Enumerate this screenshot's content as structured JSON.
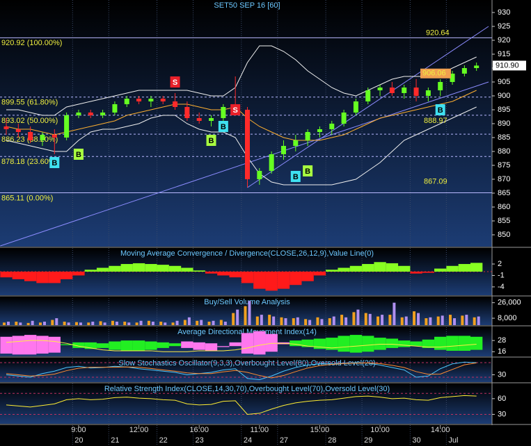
{
  "chart_data": [
    {
      "type": "candlestick",
      "title": "SET50 SEP 16  [60]",
      "categories": [
        null,
        null,
        null,
        null,
        null,
        null,
        "9:00",
        null,
        null,
        null,
        null,
        "12:00",
        null,
        null,
        null,
        null,
        "16:00",
        null,
        null,
        null,
        null,
        "11:00",
        null,
        null,
        null,
        null,
        "15:00",
        null,
        null,
        null,
        null,
        "10:00",
        null,
        null,
        null,
        null,
        "14:00",
        null,
        null,
        null
      ],
      "dates": [
        null,
        null,
        null,
        null,
        null,
        null,
        "20",
        null,
        null,
        "21",
        null,
        null,
        null,
        "22",
        null,
        null,
        "23",
        null,
        null,
        null,
        "24",
        null,
        null,
        "27",
        null,
        null,
        null,
        "28",
        null,
        null,
        "29",
        null,
        null,
        null,
        "30",
        null,
        null,
        "Jul",
        null,
        null
      ],
      "open": [
        889,
        888,
        887,
        884,
        886,
        885,
        893,
        894,
        893,
        894,
        897,
        899,
        898,
        899,
        898,
        896,
        892,
        891,
        892,
        896,
        895,
        870,
        873,
        879,
        882,
        884,
        887,
        888,
        890,
        894,
        898,
        902,
        903,
        901,
        903,
        900,
        902,
        905,
        908,
        910
      ],
      "high": [
        892,
        890,
        889,
        887,
        888,
        894,
        895,
        895,
        895,
        898,
        900,
        900,
        900,
        900,
        901,
        898,
        894,
        893,
        897,
        907,
        896,
        874,
        880,
        884,
        886,
        888,
        889,
        891,
        895,
        899,
        903,
        904,
        905,
        904,
        906.06,
        903,
        906,
        909,
        911,
        912
      ],
      "low": [
        886,
        885,
        883,
        882,
        879,
        884,
        892,
        892,
        892,
        893,
        896,
        897,
        896,
        897,
        895,
        891,
        890,
        889,
        891,
        894,
        867.09,
        868,
        872,
        877,
        880,
        882,
        885,
        886,
        889,
        893,
        897,
        900,
        900,
        899,
        898,
        898,
        900,
        904,
        907,
        909
      ],
      "close": [
        888,
        887,
        884,
        886,
        885,
        893,
        894,
        893,
        894,
        897,
        899,
        898,
        899,
        898,
        896,
        892,
        891,
        892,
        896,
        895,
        870,
        873,
        879,
        882,
        884,
        887,
        888,
        890,
        894,
        898,
        902,
        903,
        901,
        903,
        900,
        902,
        905,
        908,
        910,
        910.9
      ],
      "bollinger_upper": [
        895,
        895,
        894,
        893,
        893,
        896,
        897,
        898,
        899,
        900,
        901,
        902,
        902,
        902,
        902,
        902,
        901,
        900,
        900,
        903,
        912,
        918,
        918,
        916,
        913,
        909,
        906,
        903,
        901,
        900,
        902,
        904,
        906,
        907,
        907,
        907,
        908,
        910,
        912,
        914
      ],
      "bollinger_lower": [
        884,
        883,
        882,
        881,
        880,
        880,
        884,
        887,
        888,
        888,
        889,
        890,
        892,
        893,
        893,
        890,
        888,
        887,
        887,
        885,
        878,
        872,
        869,
        868,
        868,
        868,
        868,
        868,
        869,
        870,
        873,
        876,
        880,
        884,
        886,
        888,
        890,
        892,
        894,
        896
      ],
      "moving_average": [
        889,
        888,
        888,
        887,
        886,
        887,
        888,
        889,
        890,
        891,
        893,
        894,
        895,
        896,
        897,
        897,
        896,
        895,
        895,
        896,
        892,
        889,
        887,
        885,
        884,
        884,
        884,
        885,
        886,
        888,
        890,
        892,
        893,
        894,
        895,
        896,
        897,
        898,
        900,
        902
      ],
      "ylim": [
        845.75,
        934.5
      ],
      "yticks": [
        930,
        925,
        920,
        915,
        910,
        905,
        900,
        895,
        890,
        885,
        880,
        875,
        870,
        865,
        860,
        855,
        850
      ],
      "fib_levels": [
        {
          "value": 920.92,
          "label": "920.92 (100.00%)"
        },
        {
          "value": 899.55,
          "label": "899.55 (61.80%)"
        },
        {
          "value": 893.02,
          "label": "893.02 (50.00%)"
        },
        {
          "value": 886.23,
          "label": "886.23 (38.20%)"
        },
        {
          "value": 878.18,
          "label": "878.18 (23.60%)"
        },
        {
          "value": 865.11,
          "label": "865.11 (0.00%)"
        }
      ],
      "annotations": [
        920.64,
        906.06,
        888.97,
        867.09
      ],
      "last_price": {
        "value": 910.9,
        "label": "910.90"
      },
      "signals": [
        {
          "label": "S",
          "index": 14,
          "value": 905,
          "color": "#e8202a"
        },
        {
          "label": "S",
          "index": 19,
          "value": 895,
          "color": "#e8202a"
        },
        {
          "label": "B",
          "index": 4,
          "value": 876,
          "color": "#3fe0f0"
        },
        {
          "label": "B",
          "index": 6,
          "value": 879,
          "color": "#a8ff40"
        },
        {
          "label": "B",
          "index": 18,
          "value": 889,
          "color": "#3fe0f0"
        },
        {
          "label": "B",
          "index": 17,
          "value": 884,
          "color": "#a8ff40"
        },
        {
          "label": "B",
          "index": 24,
          "value": 871,
          "color": "#3fe0f0"
        },
        {
          "label": "B",
          "index": 25,
          "value": 873,
          "color": "#a8ff40"
        },
        {
          "label": "B",
          "index": 36,
          "value": 895,
          "color": "#3fe0f0"
        }
      ],
      "trendlines": [
        {
          "from": [
            -0.5,
            846
          ],
          "to": [
            40,
            905
          ]
        },
        {
          "from": [
            20,
            867
          ],
          "to": [
            40,
            925
          ]
        }
      ],
      "colors": {
        "up": "#66ff22",
        "down": "#ff2a2a",
        "band": "#f0f0f0",
        "average": "#ffb030",
        "trend": "#8c8cff"
      }
    },
    {
      "type": "bar",
      "title": "Moving Average Convergence / Divergence(CLOSE,26,12,9),Value Line(0)",
      "values": [
        -1.5,
        -2,
        -2.5,
        -3,
        -3,
        -2,
        -1,
        0.5,
        1,
        1.5,
        2,
        2.2,
        2,
        1.8,
        1.5,
        1,
        0.3,
        -0.5,
        -1,
        -1.5,
        -3,
        -4.5,
        -5,
        -4.5,
        -3.5,
        -2.5,
        -1,
        0.5,
        1,
        1.5,
        2,
        2.5,
        2.2,
        1.5,
        -0.5,
        -0.3,
        0.8,
        1.5,
        2,
        2.3
      ],
      "ylim": [
        -6.2,
        6.2
      ],
      "yticks": [
        2,
        -1,
        -4
      ],
      "colors": {
        "up": "#88ff22",
        "down": "#ff1a1a"
      }
    },
    {
      "type": "volume",
      "title": "Buy/Sell Volume Analysis",
      "buy": [
        3000,
        4000,
        2500,
        3000,
        6000,
        4000,
        3500,
        3000,
        4500,
        5000,
        4000,
        3000,
        5000,
        4000,
        3000,
        6000,
        5000,
        4000,
        6000,
        14000,
        22000,
        10000,
        12000,
        9000,
        8000,
        7000,
        9000,
        8000,
        12000,
        15000,
        14000,
        10000,
        12000,
        9000,
        16000,
        8000,
        10000,
        12000,
        11000,
        9000
      ],
      "sell": [
        4000,
        3000,
        5000,
        4000,
        8000,
        3000,
        3000,
        4000,
        3000,
        4000,
        3000,
        5000,
        4000,
        3000,
        5000,
        9000,
        6000,
        5000,
        4000,
        18000,
        28000,
        12000,
        10000,
        8000,
        9000,
        6000,
        7000,
        10000,
        9000,
        18000,
        13000,
        12000,
        26000,
        10000,
        14000,
        9000,
        11000,
        8000,
        12000,
        10000
      ],
      "ylim": [
        0,
        33000
      ],
      "yticks": [
        {
          "value": 26000,
          "label": "26,000"
        },
        {
          "value": 8000,
          "label": "8,000"
        }
      ],
      "colors": {
        "buy": "#f0a020",
        "sell": "#b090f0"
      }
    },
    {
      "type": "adx",
      "title": "Average Directional Movement Index(14)",
      "di_plus": [
        14,
        13,
        13,
        14,
        15,
        24,
        26,
        26,
        25,
        27,
        28,
        28,
        27,
        26,
        25,
        20,
        18,
        17,
        21,
        22,
        14,
        13,
        16,
        24,
        28,
        29,
        30,
        31,
        33,
        34,
        33,
        31,
        30,
        28,
        27,
        29,
        32,
        33,
        33,
        32
      ],
      "di_minus": [
        32,
        33,
        34,
        33,
        32,
        23,
        20,
        19,
        20,
        18,
        17,
        17,
        18,
        20,
        22,
        27,
        26,
        25,
        22,
        26,
        36,
        38,
        35,
        26,
        22,
        21,
        19,
        18,
        16,
        15,
        16,
        18,
        20,
        21,
        22,
        20,
        18,
        17,
        17,
        18
      ],
      "adx": [
        26,
        27,
        28,
        28,
        27,
        25,
        22,
        20,
        18,
        17,
        17,
        17,
        17,
        16,
        16,
        16,
        17,
        17,
        17,
        18,
        20,
        23,
        25,
        25,
        24,
        22,
        21,
        20,
        21,
        22,
        23,
        24,
        24,
        23,
        22,
        21,
        21,
        22,
        23,
        24
      ],
      "ylim": [
        11,
        43
      ],
      "yticks": [
        28,
        16
      ],
      "colors": {
        "plus": "#22ee22",
        "minus": "#ff77ee",
        "adx": "#ffee44"
      }
    },
    {
      "type": "line",
      "title": "Slow Stochastics Oscillator(9,3,3),Overbought Level(80),Oversold Level(20)",
      "series": [
        {
          "color": "#4cc8ff",
          "values": [
            30,
            25,
            20,
            35,
            45,
            60,
            65,
            58,
            60,
            65,
            62,
            55,
            50,
            45,
            40,
            30,
            35,
            40,
            50,
            55,
            15,
            10,
            25,
            45,
            60,
            70,
            75,
            75,
            78,
            80,
            78,
            70,
            60,
            50,
            20,
            25,
            55,
            75,
            82,
            80
          ]
        },
        {
          "color": "#ff8c30",
          "values": [
            35,
            30,
            25,
            27,
            33,
            47,
            57,
            61,
            61,
            61,
            62,
            61,
            56,
            50,
            45,
            38,
            35,
            35,
            42,
            48,
            40,
            27,
            17,
            27,
            43,
            58,
            68,
            73,
            76,
            78,
            79,
            76,
            69,
            60,
            43,
            32,
            33,
            52,
            71,
            79
          ]
        }
      ],
      "levels": [
        80,
        20
      ],
      "ylim": [
        0,
        100
      ],
      "yticks": [
        30
      ]
    },
    {
      "type": "line",
      "title": "Relative Strength Index(CLOSE,14,30,70),Overbought Level(70),Oversold Level(30)",
      "series": [
        {
          "color": "#ffee33",
          "values": [
            48,
            46,
            44,
            47,
            50,
            58,
            60,
            58,
            59,
            62,
            63,
            61,
            60,
            58,
            57,
            50,
            48,
            49,
            55,
            56,
            30,
            32,
            40,
            47,
            52,
            55,
            57,
            58,
            61,
            64,
            65,
            63,
            60,
            61,
            58,
            57,
            62,
            64,
            66,
            65
          ]
        }
      ],
      "levels": [
        70,
        30
      ],
      "ylim": [
        12,
        89
      ],
      "yticks": [
        60,
        30
      ]
    }
  ]
}
